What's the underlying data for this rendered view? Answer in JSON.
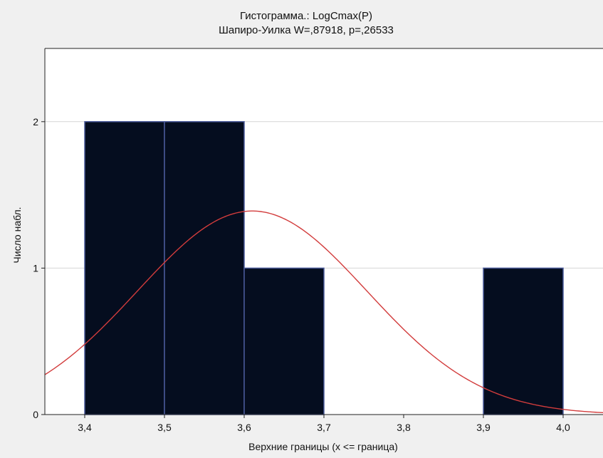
{
  "chart_data": {
    "type": "bar",
    "title": "Гистограмма.: LogCmax(P)",
    "subtitle": "Шапиро-Уилка W=,87918, p=,26533",
    "xlabel": "Верхние границы (x <= граница)",
    "ylabel": "Число набл.",
    "xlim": [
      3.35,
      4.05
    ],
    "ylim": [
      0,
      2.5
    ],
    "x_ticks": [
      "3,4",
      "3,5",
      "3,6",
      "3,7",
      "3,8",
      "3,9",
      "4,0"
    ],
    "y_ticks": [
      "0",
      "1",
      "2"
    ],
    "bins": [
      {
        "from": 3.4,
        "to": 3.5,
        "count": 2
      },
      {
        "from": 3.5,
        "to": 3.6,
        "count": 2
      },
      {
        "from": 3.6,
        "to": 3.7,
        "count": 1
      },
      {
        "from": 3.7,
        "to": 3.8,
        "count": 0
      },
      {
        "from": 3.8,
        "to": 3.9,
        "count": 0
      },
      {
        "from": 3.9,
        "to": 4.0,
        "count": 1
      }
    ],
    "normal_curve": {
      "mean": 3.61,
      "sd": 0.144,
      "peak": 1.39
    },
    "grid": true,
    "colors": {
      "bar_fill": "#050d1f",
      "bar_edge": "#4a5a9a",
      "curve": "#d23c3c",
      "plot_bg": "#ffffff",
      "page_bg": "#f0f0f0",
      "grid": "#d6d6d6"
    }
  }
}
